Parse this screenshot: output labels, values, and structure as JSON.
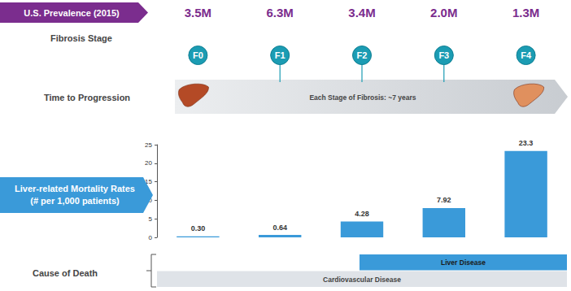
{
  "header": {
    "label": "U.S. Prevalence (2015)",
    "values": [
      "3.5M",
      "6.3M",
      "3.4M",
      "2.0M",
      "1.3M"
    ]
  },
  "stage_label": "Fibrosis Stage",
  "progression": {
    "label": "Time to Progression",
    "text": "Each Stage of Fibrosis: ~7 years"
  },
  "chart_data": {
    "type": "bar",
    "title": "Liver-related Mortality Rates",
    "subtitle": "(# per 1,000 patients)",
    "categories": [
      "F0",
      "F1",
      "F2",
      "F3",
      "F4"
    ],
    "values": [
      0.3,
      0.64,
      4.28,
      7.92,
      23.3
    ],
    "value_labels": [
      "0.30",
      "0.64",
      "4.28",
      "7.92",
      "23.3"
    ],
    "color": "#3a9ad9",
    "ylim": [
      0,
      25
    ],
    "yticks": [
      0,
      5,
      10,
      15,
      20,
      25
    ],
    "grid": false,
    "data_labels": true,
    "tick_labels": "y"
  },
  "cause_of_death": {
    "label": "Cause of Death",
    "bands": [
      {
        "label": "Liver Disease",
        "from": "F2",
        "color": "#3a9ad9"
      },
      {
        "label": "Cardiovascular Disease",
        "from": "F0",
        "color": "#dfe3e8"
      }
    ]
  }
}
